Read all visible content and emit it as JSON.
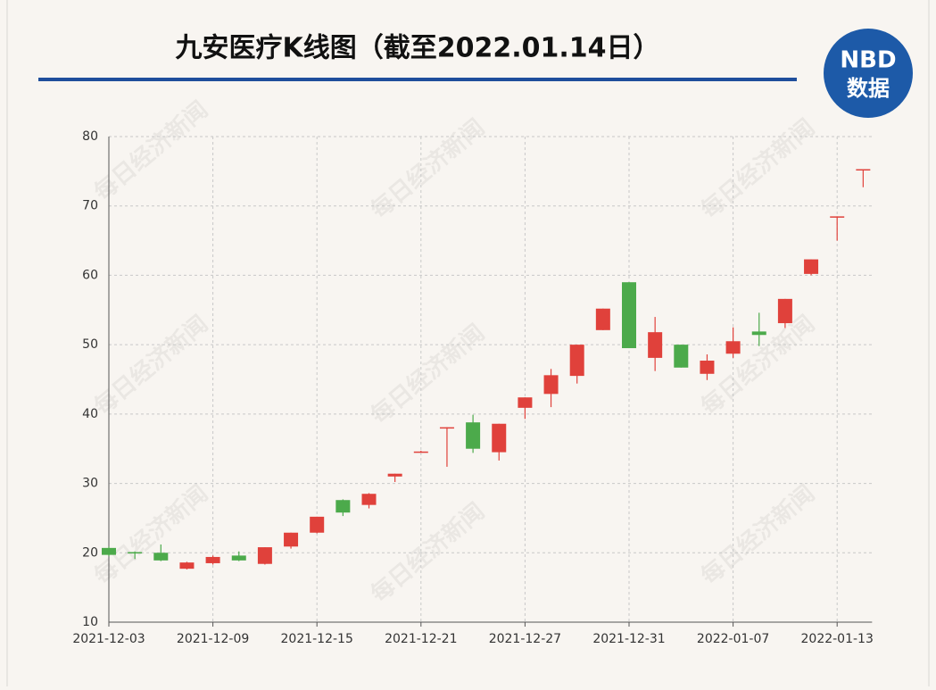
{
  "chart_data": {
    "type": "candlestick",
    "title": "九安医疗K线图（截至2022.01.14日）",
    "logo": {
      "top": "NBD",
      "bottom": "数据"
    },
    "watermark": "每日经济新闻",
    "categories": [
      "2021-12-03",
      null,
      null,
      null,
      "2021-12-09",
      null,
      null,
      null,
      "2021-12-15",
      null,
      null,
      null,
      "2021-12-21",
      null,
      null,
      null,
      "2021-12-27",
      null,
      null,
      null,
      "2021-12-31",
      null,
      null,
      null,
      "2022-01-07",
      null,
      null,
      null,
      "2022-01-13",
      null
    ],
    "open": [
      20.7,
      20.1,
      20.0,
      17.7,
      18.5,
      19.6,
      18.4,
      20.9,
      22.9,
      27.6,
      26.9,
      31.0,
      34.5,
      38.0,
      38.8,
      34.5,
      40.9,
      42.9,
      45.5,
      52.1,
      59.0,
      48.1,
      50.0,
      45.8,
      48.7,
      51.9,
      53.1,
      60.2,
      68.4,
      75.2
    ],
    "high": [
      20.9,
      20.2,
      21.2,
      18.7,
      19.6,
      20.2,
      20.8,
      22.9,
      25.2,
      27.7,
      28.6,
      31.4,
      34.7,
      38.1,
      39.9,
      38.6,
      42.4,
      46.5,
      50.0,
      55.2,
      59.0,
      54.0,
      50.0,
      48.6,
      52.5,
      54.6,
      56.6,
      62.3,
      68.5,
      75.3
    ],
    "low": [
      19.5,
      19.1,
      18.8,
      17.6,
      18.3,
      18.8,
      18.3,
      20.6,
      22.8,
      25.3,
      26.4,
      30.2,
      34.5,
      32.4,
      34.4,
      33.3,
      39.3,
      41.0,
      44.4,
      52.1,
      49.5,
      46.2,
      46.7,
      44.9,
      48.1,
      49.8,
      52.4,
      60.0,
      65.0,
      72.7
    ],
    "close": [
      19.7,
      19.9,
      18.9,
      18.6,
      19.4,
      18.9,
      20.8,
      22.9,
      25.2,
      25.8,
      28.5,
      31.4,
      34.6,
      38.1,
      35.0,
      38.6,
      42.4,
      45.6,
      50.0,
      55.2,
      49.5,
      51.8,
      46.7,
      47.7,
      50.5,
      51.4,
      56.6,
      62.3,
      68.5,
      75.3
    ],
    "up_color": "#e0413b",
    "down_color": "#4caa4b",
    "ylim": [
      10,
      80
    ],
    "yticks": [
      10,
      20,
      30,
      40,
      50,
      60,
      70,
      80
    ],
    "grid": true
  }
}
